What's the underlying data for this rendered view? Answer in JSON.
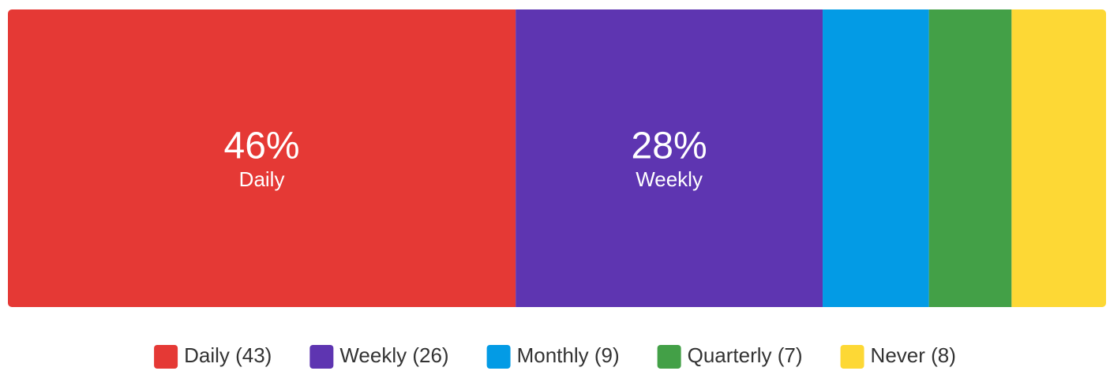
{
  "chart_data": {
    "type": "stacked_bar",
    "categories": [
      "Daily",
      "Weekly",
      "Monthly",
      "Quarterly",
      "Never"
    ],
    "values": [
      43,
      26,
      9,
      7,
      8
    ],
    "value_labels": [
      "Daily (43)",
      "Weekly (26)",
      "Monthly (9)",
      "Quarterly (7)",
      "Never (8)"
    ],
    "percent_labels": [
      "46%",
      "28%",
      null,
      null,
      null
    ],
    "colors": [
      "#e53935",
      "#5e35b1",
      "#039be5",
      "#43a047",
      "#fdd835"
    ]
  }
}
